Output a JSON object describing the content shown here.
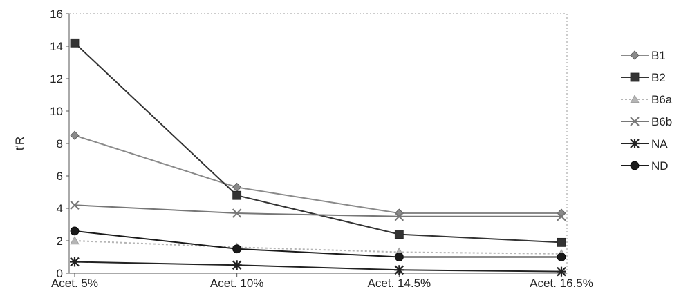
{
  "chart_data": {
    "type": "line",
    "title": "",
    "xlabel": "",
    "ylabel": "t'R",
    "categories": [
      "Acet. 5%",
      "Acet. 10%",
      "Acet. 14,5%",
      "Acet. 16,5%"
    ],
    "ylim": [
      0,
      16
    ],
    "yticks": [
      0,
      2,
      4,
      6,
      8,
      10,
      12,
      14,
      16
    ],
    "grid": false,
    "legend": "right",
    "series": [
      {
        "name": "B1",
        "values": [
          8.5,
          5.3,
          3.7,
          3.7
        ],
        "color": "#8a8a8a",
        "marker": "diamond",
        "dash": ""
      },
      {
        "name": "B2",
        "values": [
          14.2,
          4.8,
          2.4,
          1.9
        ],
        "color": "#333333",
        "marker": "square",
        "dash": ""
      },
      {
        "name": "B6a",
        "values": [
          2.0,
          1.6,
          1.3,
          1.2
        ],
        "color": "#b5b5b5",
        "marker": "triangle",
        "dash": "3,3"
      },
      {
        "name": "B6b",
        "values": [
          4.2,
          3.7,
          3.5,
          3.5
        ],
        "color": "#777777",
        "marker": "x",
        "dash": ""
      },
      {
        "name": "NA",
        "values": [
          0.7,
          0.5,
          0.2,
          0.1
        ],
        "color": "#222222",
        "marker": "star",
        "dash": ""
      },
      {
        "name": "ND",
        "values": [
          2.6,
          1.5,
          1.0,
          1.0
        ],
        "color": "#1a1a1a",
        "marker": "circle",
        "dash": ""
      }
    ]
  }
}
